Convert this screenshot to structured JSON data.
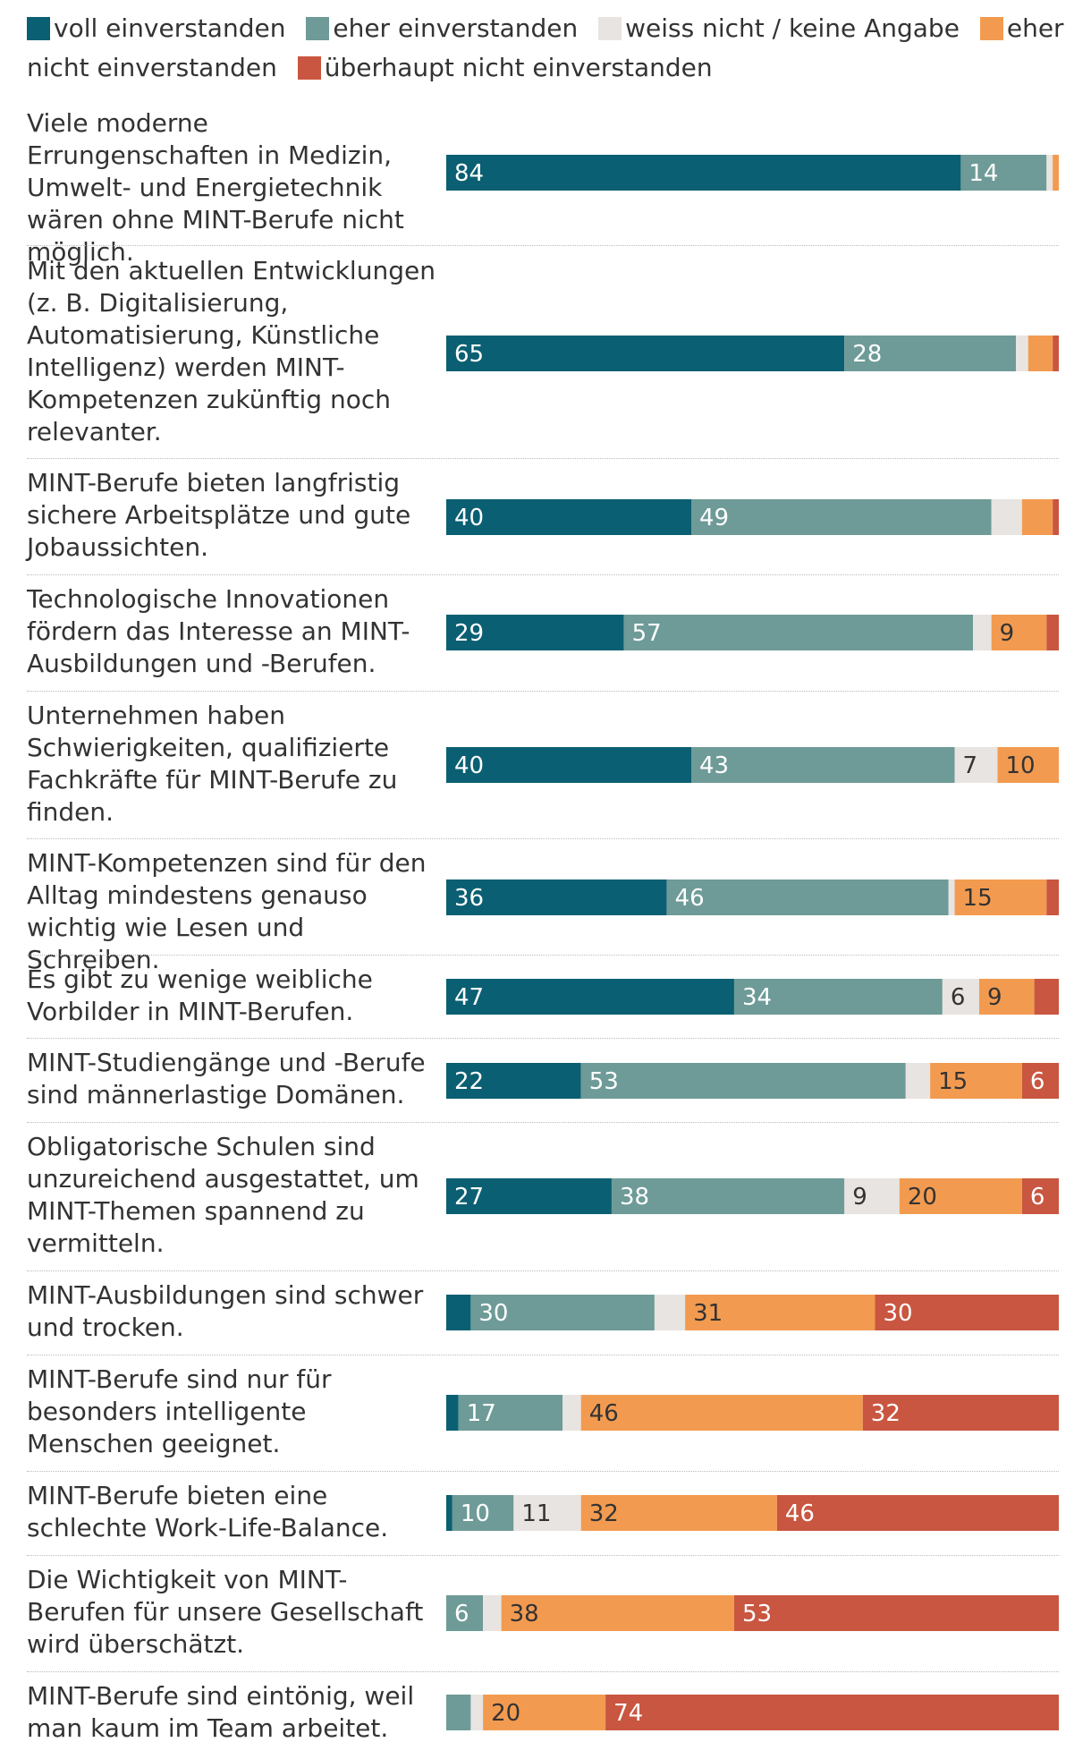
{
  "chart_data": {
    "type": "bar",
    "orientation": "horizontal",
    "stacked": true,
    "unit": "percent",
    "title": "",
    "xlabel": "",
    "ylabel": "",
    "legend_position": "top",
    "series": [
      {
        "name": "voll einverstanden",
        "color": "#0b5f72",
        "values": [
          84,
          65,
          40,
          29,
          40,
          36,
          47,
          22,
          27,
          4,
          2,
          1,
          0,
          0
        ]
      },
      {
        "name": "eher einverstanden",
        "color": "#6e9b97",
        "values": [
          14,
          28,
          49,
          57,
          43,
          46,
          34,
          53,
          38,
          30,
          17,
          10,
          6,
          4
        ]
      },
      {
        "name": "weiss nicht / keine Angabe",
        "color": "#e8e4e1",
        "values": [
          1,
          2,
          5,
          3,
          7,
          1,
          6,
          4,
          9,
          5,
          3,
          11,
          3,
          2
        ]
      },
      {
        "name": "eher nicht einverstanden",
        "color": "#f29b50",
        "values": [
          1,
          4,
          5,
          9,
          10,
          15,
          9,
          15,
          20,
          31,
          46,
          32,
          38,
          20
        ]
      },
      {
        "name": "überhaupt nicht einverstanden",
        "color": "#c95640",
        "values": [
          0,
          1,
          1,
          2,
          0,
          2,
          4,
          6,
          6,
          30,
          32,
          46,
          53,
          74
        ]
      }
    ],
    "labels": [
      [
        "84",
        "14",
        "",
        "",
        ""
      ],
      [
        "65",
        "28",
        "",
        "",
        ""
      ],
      [
        "40",
        "49",
        "",
        "",
        ""
      ],
      [
        "29",
        "57",
        "",
        "9",
        ""
      ],
      [
        "40",
        "43",
        "7",
        "10",
        ""
      ],
      [
        "36",
        "46",
        "",
        "15",
        ""
      ],
      [
        "47",
        "34",
        "6",
        "9",
        ""
      ],
      [
        "22",
        "53",
        "",
        "15",
        "6"
      ],
      [
        "27",
        "38",
        "9",
        "20",
        "6"
      ],
      [
        "",
        "30",
        "",
        "31",
        "30"
      ],
      [
        "",
        "17",
        "",
        "46",
        "32"
      ],
      [
        "",
        "10",
        "11",
        "32",
        "46"
      ],
      [
        "",
        "6",
        "",
        "38",
        "53"
      ],
      [
        "",
        "",
        "",
        "20",
        "74"
      ]
    ],
    "categories": [
      "Viele moderne Errungenschaften in Medizin, Umwelt- und Energietechnik wären ohne MINT-Berufe nicht möglich.",
      "Mit den aktuellen Entwicklungen (z. B. Digitalisierung, Automatisierung, Künstliche Intelligenz) werden MINT-Kompetenzen zukünftig noch relevanter.",
      "MINT-Berufe bieten langfristig sichere Arbeitsplätze und gute Jobaussichten.",
      "Technologische Innovationen fördern das Interesse an MINT-Ausbildungen und -Berufen.",
      "Unternehmen haben Schwierigkeiten, qualifizierte Fachkräfte für MINT-Berufe zu finden.",
      "MINT-Kompetenzen sind für den Alltag mindestens genauso wichtig wie Lesen und Schreiben.",
      "Es gibt zu wenige weibliche Vorbilder in MINT-Berufen.",
      "MINT-Studiengänge und -Berufe sind männerlastige Domänen.",
      "Obligatorische Schulen sind unzureichend ausgestattet, um MINT-Themen spannend zu vermitteln.",
      "MINT-Ausbildungen sind schwer und trocken.",
      "MINT-Berufe sind nur für besonders intelligente Menschen geeignet.",
      "MINT-Berufe bieten eine schlechte Work-Life-Balance.",
      "Die Wichtigkeit von MINT-Berufen für unsere Gesellschaft wird überschätzt.",
      "MINT-Berufe sind eintönig, weil man kaum im Team arbeitet."
    ]
  }
}
